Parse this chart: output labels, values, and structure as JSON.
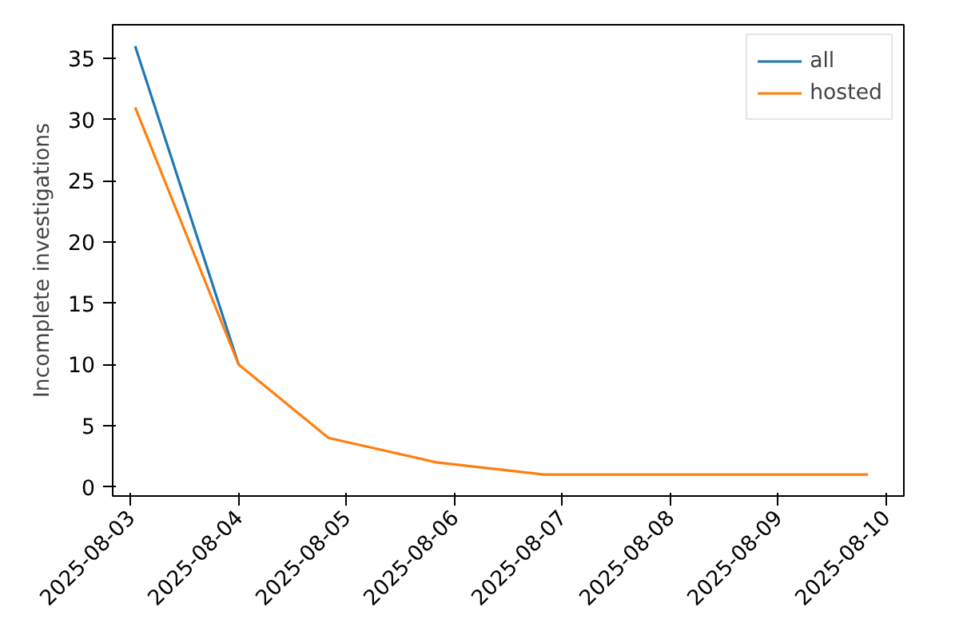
{
  "chart_data": {
    "type": "line",
    "ylabel": "Incomplete investigations",
    "x": [
      "2025-08-03T01:00",
      "2025-08-04T00:00",
      "2025-08-04T20:00",
      "2025-08-05T20:00",
      "2025-08-06T20:00",
      "2025-08-07T20:00",
      "2025-08-08T20:00",
      "2025-08-09T20:00"
    ],
    "series": [
      {
        "name": "all",
        "color": "#1f77b4",
        "values": [
          36,
          10,
          null,
          null,
          null,
          null,
          null,
          null
        ]
      },
      {
        "name": "hosted",
        "color": "#ff7f0e",
        "values": [
          31,
          10,
          4,
          2,
          1,
          1,
          1,
          1
        ]
      }
    ],
    "xlim": [
      "2025-08-02T20:00",
      "2025-08-10T04:00"
    ],
    "xticks": [
      "2025-08-03",
      "2025-08-04",
      "2025-08-05",
      "2025-08-06",
      "2025-08-07",
      "2025-08-08",
      "2025-08-09",
      "2025-08-10"
    ],
    "ylim": [
      -0.75,
      37.75
    ],
    "yticks": [
      0,
      5,
      10,
      15,
      20,
      25,
      30,
      35
    ],
    "grid": false,
    "legend": "top right",
    "line_style": "solid",
    "marker": "none"
  }
}
